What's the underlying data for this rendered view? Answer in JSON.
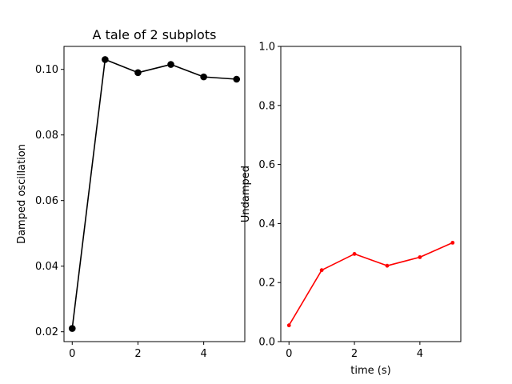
{
  "chart_data": [
    {
      "type": "line",
      "title": "A tale of 2 subplots",
      "xlabel": "",
      "ylabel": "Damped oscillation",
      "xlim": [
        -0.25,
        5.25
      ],
      "ylim": [
        0.017,
        0.107
      ],
      "x_ticks": [
        0,
        2,
        4
      ],
      "y_ticks": [
        0.02,
        0.04,
        0.06,
        0.08,
        0.1
      ],
      "x_tick_labels": [
        "0",
        "2",
        "4"
      ],
      "y_tick_labels": [
        "0.02",
        "0.04",
        "0.06",
        "0.08",
        "0.10"
      ],
      "grid": false,
      "series": [
        {
          "x": [
            0,
            1,
            2,
            3,
            4,
            5
          ],
          "values": [
            0.021,
            0.103,
            0.099,
            0.1015,
            0.0977,
            0.097
          ],
          "color": "#000000",
          "marker": "circle-large"
        }
      ]
    },
    {
      "type": "line",
      "title": "",
      "xlabel": "time (s)",
      "ylabel": "Undamped",
      "xlim": [
        -0.25,
        5.25
      ],
      "ylim": [
        0.0,
        1.0
      ],
      "x_ticks": [
        0,
        2,
        4
      ],
      "y_ticks": [
        0.0,
        0.2,
        0.4,
        0.6,
        0.8,
        1.0
      ],
      "x_tick_labels": [
        "0",
        "2",
        "4"
      ],
      "y_tick_labels": [
        "0.0",
        "0.2",
        "0.4",
        "0.6",
        "0.8",
        "1.0"
      ],
      "grid": false,
      "series": [
        {
          "x": [
            0,
            1,
            2,
            3,
            4,
            5
          ],
          "values": [
            0.055,
            0.242,
            0.297,
            0.257,
            0.286,
            0.335
          ],
          "color": "#ff0000",
          "marker": "point-small"
        }
      ]
    }
  ]
}
